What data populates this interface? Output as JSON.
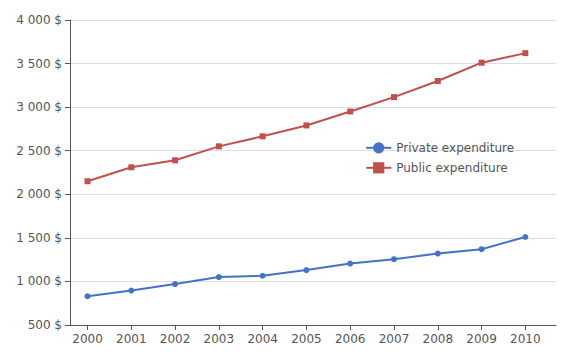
{
  "chart_data": {
    "type": "line",
    "x": [
      2000,
      2001,
      2002,
      2003,
      2004,
      2005,
      2006,
      2007,
      2008,
      2009,
      2010
    ],
    "series": [
      {
        "name": "Private expenditure",
        "color": "#4472C4",
        "marker": "circle",
        "values": [
          830,
          895,
          970,
          1050,
          1065,
          1130,
          1205,
          1255,
          1320,
          1370,
          1510
        ]
      },
      {
        "name": "Public expenditure",
        "color": "#C0504D",
        "marker": "square",
        "values": [
          2150,
          2310,
          2390,
          2550,
          2665,
          2790,
          2950,
          3115,
          3300,
          3510,
          3620
        ]
      }
    ],
    "xlim": [
      1999.6,
      2010.7
    ],
    "xticks": [
      2000,
      2001,
      2002,
      2003,
      2004,
      2005,
      2006,
      2007,
      2008,
      2009,
      2010
    ],
    "ylim": [
      500,
      4000
    ],
    "yticks": [
      {
        "value": 500,
        "label": "500 $"
      },
      {
        "value": 1000,
        "label": "1 000 $"
      },
      {
        "value": 1500,
        "label": "1 500 $"
      },
      {
        "value": 2000,
        "label": "2 000 $"
      },
      {
        "value": 2500,
        "label": "2 500 $"
      },
      {
        "value": 3000,
        "label": "3 000 $"
      },
      {
        "value": 3500,
        "label": "3 500 $"
      },
      {
        "value": 4000,
        "label": "4 000 $"
      }
    ],
    "grid": true,
    "legend": "right"
  }
}
